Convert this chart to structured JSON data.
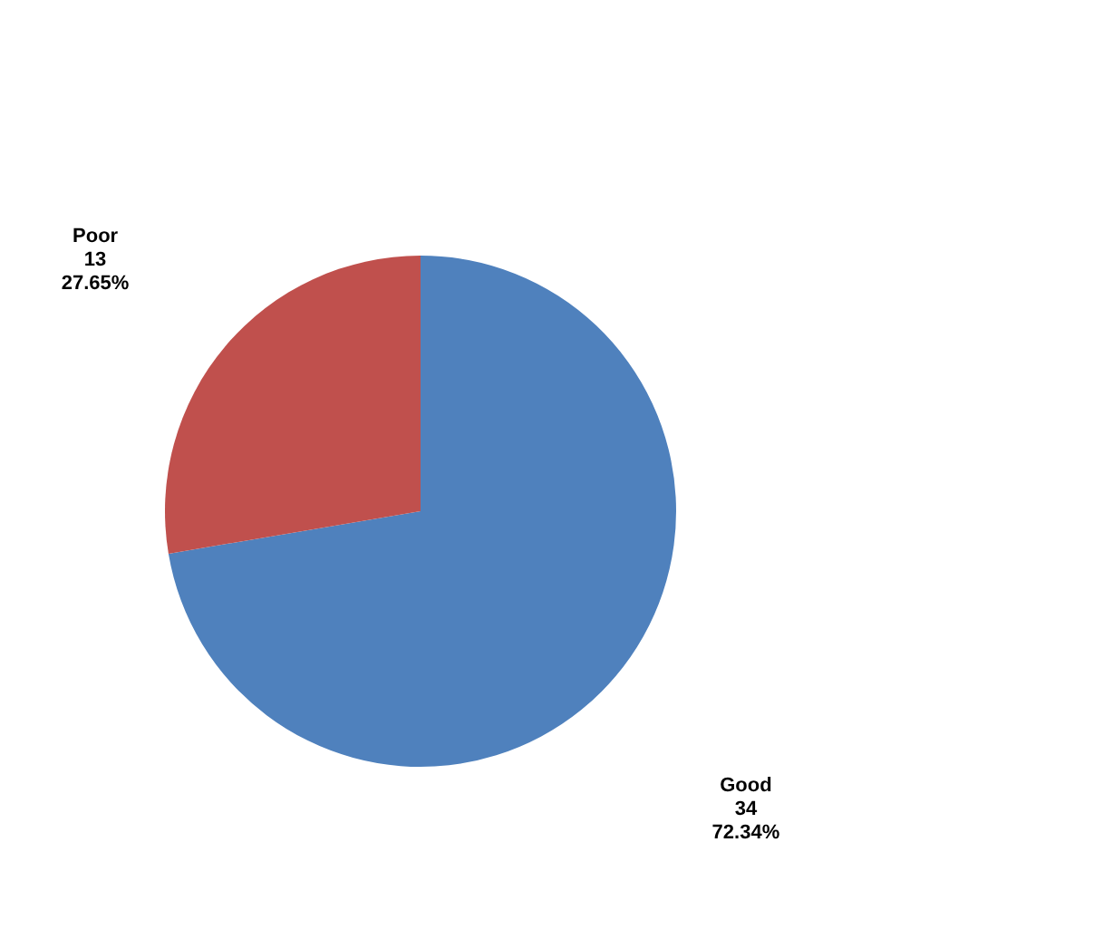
{
  "chart_data": {
    "type": "pie",
    "categories": [
      "Good",
      "Poor"
    ],
    "values": [
      34,
      13
    ],
    "colors": [
      "#4f81bd",
      "#c0504d"
    ],
    "value_labels": [
      "34\n72.34%",
      "13\n27.65%"
    ]
  }
}
